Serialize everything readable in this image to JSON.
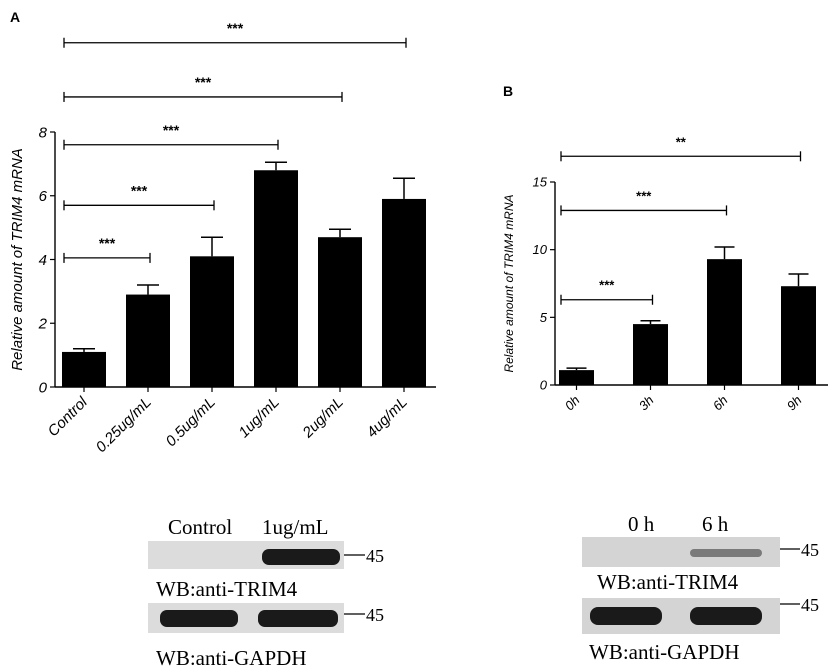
{
  "chart_data": [
    {
      "panel": "A",
      "type": "bar",
      "ylabel": "Relative amount of TRIM4 mRNA",
      "ylim": [
        0,
        8
      ],
      "yticks": [
        0,
        2,
        4,
        6,
        8
      ],
      "categories": [
        "Control",
        "0.25ug/mL",
        "0.5ug/mL",
        "1ug/mL",
        "2ug/mL",
        "4ug/mL"
      ],
      "values": [
        1.1,
        2.9,
        4.1,
        6.8,
        4.7,
        5.9
      ],
      "errors": [
        0.1,
        0.3,
        0.6,
        0.25,
        0.25,
        0.65
      ],
      "significance": [
        {
          "from": "Control",
          "to": "0.25ug/mL",
          "y": 4.05,
          "label": "***"
        },
        {
          "from": "Control",
          "to": "0.5ug/mL",
          "y": 5.7,
          "label": "***"
        },
        {
          "from": "Control",
          "to": "1ug/mL",
          "y": 7.6,
          "label": "***"
        },
        {
          "from": "Control",
          "to": "2ug/mL",
          "y": 9.1,
          "label": "***"
        },
        {
          "from": "Control",
          "to": "4ug/mL",
          "y": 10.8,
          "label": "***"
        }
      ]
    },
    {
      "panel": "B",
      "type": "bar",
      "ylabel": "Relative amount of TRIM4 mRNA",
      "ylim": [
        0,
        15
      ],
      "yticks": [
        0,
        5,
        10,
        15
      ],
      "categories": [
        "0h",
        "3h",
        "6h",
        "9h"
      ],
      "values": [
        1.1,
        4.5,
        9.3,
        7.3
      ],
      "errors": [
        0.15,
        0.25,
        0.9,
        0.9
      ],
      "significance": [
        {
          "from": "0h",
          "to": "3h",
          "y": 6.3,
          "label": "***"
        },
        {
          "from": "0h",
          "to": "6h",
          "y": 12.9,
          "label": "***"
        },
        {
          "from": "0h",
          "to": "9h",
          "y": 16.9,
          "label": "**"
        }
      ]
    }
  ],
  "western_blots": {
    "A": {
      "lanes": [
        "Control",
        "1ug/mL"
      ],
      "marker": "45",
      "trim4_label": "WB:anti-TRIM4",
      "gapdh_label": "WB:anti-GAPDH"
    },
    "B": {
      "lanes": [
        "0 h",
        "6 h"
      ],
      "marker": "45",
      "trim4_label": "WB:anti-TRIM4",
      "gapdh_label": "WB:anti-GAPDH"
    }
  },
  "colors": {
    "bar": "#000000",
    "blot_bg": "#d7d7d7",
    "band": "#1a1a1a"
  }
}
